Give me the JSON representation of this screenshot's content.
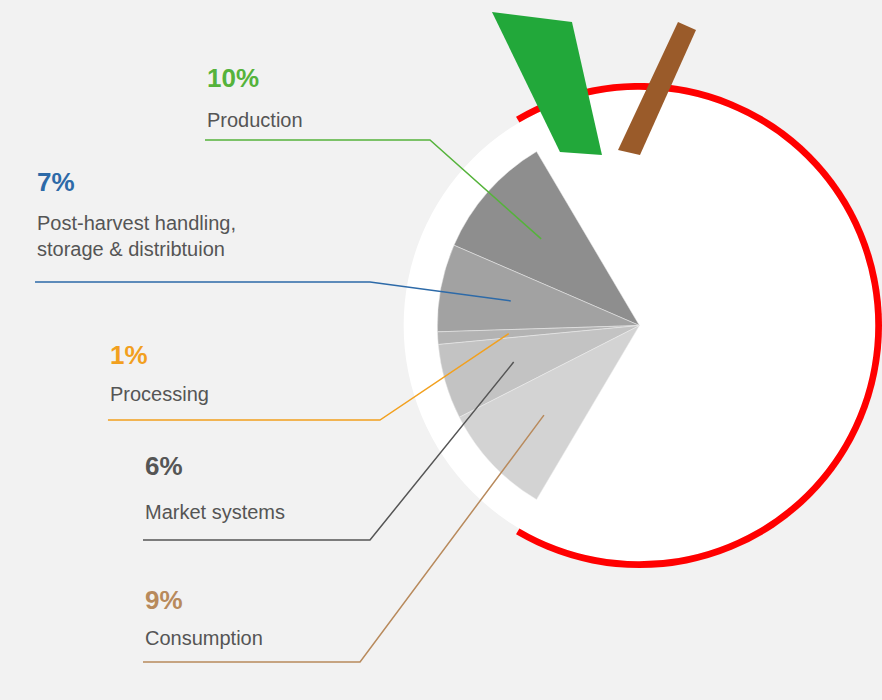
{
  "chart_data": {
    "type": "pie",
    "categories": [
      "Production",
      "Post-harvest handling, storage & distribtuion",
      "Processing",
      "Market systems",
      "Consumption"
    ],
    "values": [
      10,
      7,
      1,
      6,
      9
    ],
    "value_labels": [
      "10%",
      "7%",
      "1%",
      "6%",
      "9%"
    ],
    "colors": [
      "#8e8e8e",
      "#a2a2a2",
      "#b3b3b3",
      "#c3c3c3",
      "#d3d3d3"
    ],
    "data_labels": true
  }
}
